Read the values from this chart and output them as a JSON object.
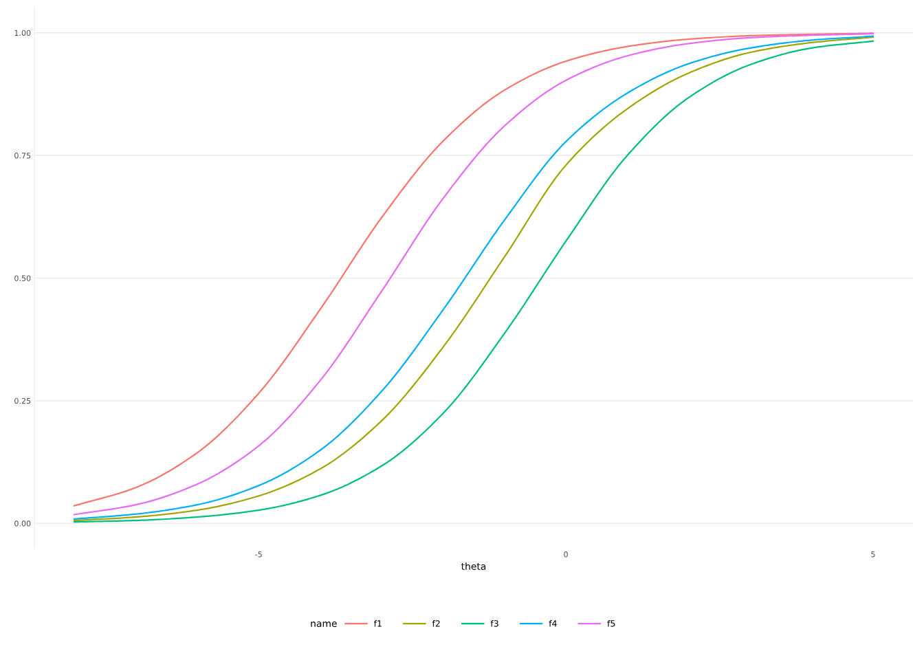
{
  "chart_data": {
    "type": "line",
    "xlabel": "theta",
    "legend_title": "name",
    "x": [
      -8,
      -7,
      -6,
      -5,
      -4,
      -3,
      -2,
      -1,
      0,
      1,
      2,
      3,
      4,
      5
    ],
    "series": [
      {
        "name": "f1",
        "color": "#f8766d",
        "values": [
          0.036,
          0.073,
          0.144,
          0.265,
          0.436,
          0.623,
          0.779,
          0.883,
          0.942,
          0.972,
          0.987,
          0.994,
          0.997,
          0.999
        ]
      },
      {
        "name": "f2",
        "color": "#a3a500",
        "values": [
          0.006,
          0.013,
          0.027,
          0.056,
          0.111,
          0.209,
          0.359,
          0.543,
          0.73,
          0.845,
          0.918,
          0.96,
          0.98,
          0.991
        ]
      },
      {
        "name": "f3",
        "color": "#00bf7d",
        "values": [
          0.003,
          0.006,
          0.013,
          0.027,
          0.057,
          0.117,
          0.224,
          0.387,
          0.575,
          0.75,
          0.868,
          0.935,
          0.969,
          0.983
        ]
      },
      {
        "name": "f4",
        "color": "#00b0f6",
        "values": [
          0.009,
          0.019,
          0.038,
          0.077,
          0.149,
          0.269,
          0.435,
          0.618,
          0.778,
          0.877,
          0.937,
          0.969,
          0.985,
          0.993
        ]
      },
      {
        "name": "f5",
        "color": "#e76bf3",
        "values": [
          0.018,
          0.038,
          0.08,
          0.158,
          0.291,
          0.473,
          0.662,
          0.81,
          0.903,
          0.953,
          0.978,
          0.99,
          0.995,
          0.998
        ]
      }
    ],
    "xlim": [
      -8.65,
      5.65
    ],
    "ylim": [
      -0.05,
      1.05
    ],
    "xticks": [
      -5,
      0,
      5
    ],
    "yticks": [
      {
        "value": 0,
        "label": "0.00"
      },
      {
        "value": 0.25,
        "label": "0.25"
      },
      {
        "value": 0.5,
        "label": "0.50"
      },
      {
        "value": 0.75,
        "label": "0.75"
      },
      {
        "value": 1,
        "label": "1.00"
      }
    ],
    "grid": "y",
    "legend": "bottom",
    "line_style": "solid",
    "marker": "none"
  }
}
